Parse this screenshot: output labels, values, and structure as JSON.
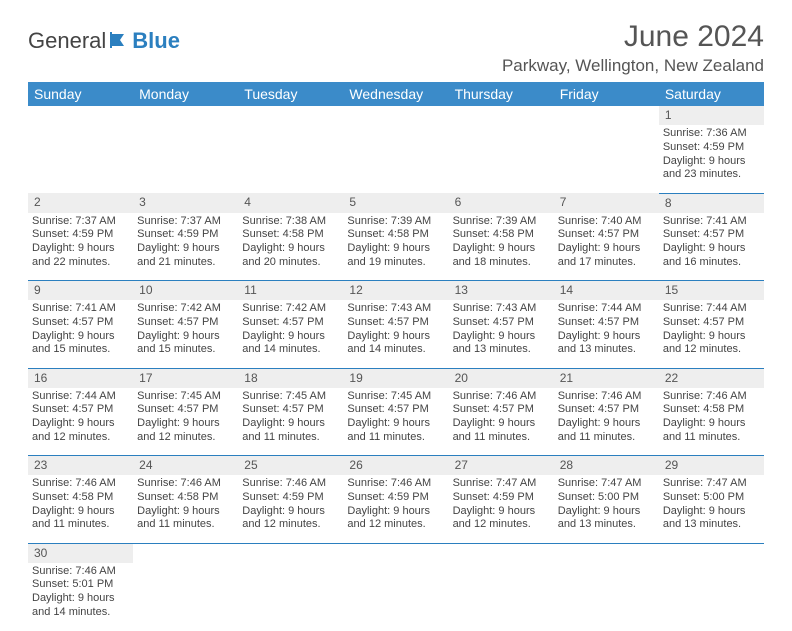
{
  "logo": {
    "general": "General",
    "blue": "Blue"
  },
  "header": {
    "month_title": "June 2024",
    "location": "Parkway, Wellington, New Zealand"
  },
  "colors": {
    "header_bg": "#3b8bc9",
    "header_text": "#ffffff",
    "daynum_bg": "#eeeeee",
    "border_color": "#2b7fbf",
    "text_color": "#444444",
    "logo_blue": "#2b7fbf"
  },
  "weekdays": [
    "Sunday",
    "Monday",
    "Tuesday",
    "Wednesday",
    "Thursday",
    "Friday",
    "Saturday"
  ],
  "weeks": [
    {
      "nums": [
        "",
        "",
        "",
        "",
        "",
        "",
        "1"
      ],
      "cells": [
        null,
        null,
        null,
        null,
        null,
        null,
        {
          "sunrise": "Sunrise: 7:36 AM",
          "sunset": "Sunset: 4:59 PM",
          "day1": "Daylight: 9 hours",
          "day2": "and 23 minutes."
        }
      ]
    },
    {
      "nums": [
        "2",
        "3",
        "4",
        "5",
        "6",
        "7",
        "8"
      ],
      "cells": [
        {
          "sunrise": "Sunrise: 7:37 AM",
          "sunset": "Sunset: 4:59 PM",
          "day1": "Daylight: 9 hours",
          "day2": "and 22 minutes."
        },
        {
          "sunrise": "Sunrise: 7:37 AM",
          "sunset": "Sunset: 4:59 PM",
          "day1": "Daylight: 9 hours",
          "day2": "and 21 minutes."
        },
        {
          "sunrise": "Sunrise: 7:38 AM",
          "sunset": "Sunset: 4:58 PM",
          "day1": "Daylight: 9 hours",
          "day2": "and 20 minutes."
        },
        {
          "sunrise": "Sunrise: 7:39 AM",
          "sunset": "Sunset: 4:58 PM",
          "day1": "Daylight: 9 hours",
          "day2": "and 19 minutes."
        },
        {
          "sunrise": "Sunrise: 7:39 AM",
          "sunset": "Sunset: 4:58 PM",
          "day1": "Daylight: 9 hours",
          "day2": "and 18 minutes."
        },
        {
          "sunrise": "Sunrise: 7:40 AM",
          "sunset": "Sunset: 4:57 PM",
          "day1": "Daylight: 9 hours",
          "day2": "and 17 minutes."
        },
        {
          "sunrise": "Sunrise: 7:41 AM",
          "sunset": "Sunset: 4:57 PM",
          "day1": "Daylight: 9 hours",
          "day2": "and 16 minutes."
        }
      ]
    },
    {
      "nums": [
        "9",
        "10",
        "11",
        "12",
        "13",
        "14",
        "15"
      ],
      "cells": [
        {
          "sunrise": "Sunrise: 7:41 AM",
          "sunset": "Sunset: 4:57 PM",
          "day1": "Daylight: 9 hours",
          "day2": "and 15 minutes."
        },
        {
          "sunrise": "Sunrise: 7:42 AM",
          "sunset": "Sunset: 4:57 PM",
          "day1": "Daylight: 9 hours",
          "day2": "and 15 minutes."
        },
        {
          "sunrise": "Sunrise: 7:42 AM",
          "sunset": "Sunset: 4:57 PM",
          "day1": "Daylight: 9 hours",
          "day2": "and 14 minutes."
        },
        {
          "sunrise": "Sunrise: 7:43 AM",
          "sunset": "Sunset: 4:57 PM",
          "day1": "Daylight: 9 hours",
          "day2": "and 14 minutes."
        },
        {
          "sunrise": "Sunrise: 7:43 AM",
          "sunset": "Sunset: 4:57 PM",
          "day1": "Daylight: 9 hours",
          "day2": "and 13 minutes."
        },
        {
          "sunrise": "Sunrise: 7:44 AM",
          "sunset": "Sunset: 4:57 PM",
          "day1": "Daylight: 9 hours",
          "day2": "and 13 minutes."
        },
        {
          "sunrise": "Sunrise: 7:44 AM",
          "sunset": "Sunset: 4:57 PM",
          "day1": "Daylight: 9 hours",
          "day2": "and 12 minutes."
        }
      ]
    },
    {
      "nums": [
        "16",
        "17",
        "18",
        "19",
        "20",
        "21",
        "22"
      ],
      "cells": [
        {
          "sunrise": "Sunrise: 7:44 AM",
          "sunset": "Sunset: 4:57 PM",
          "day1": "Daylight: 9 hours",
          "day2": "and 12 minutes."
        },
        {
          "sunrise": "Sunrise: 7:45 AM",
          "sunset": "Sunset: 4:57 PM",
          "day1": "Daylight: 9 hours",
          "day2": "and 12 minutes."
        },
        {
          "sunrise": "Sunrise: 7:45 AM",
          "sunset": "Sunset: 4:57 PM",
          "day1": "Daylight: 9 hours",
          "day2": "and 11 minutes."
        },
        {
          "sunrise": "Sunrise: 7:45 AM",
          "sunset": "Sunset: 4:57 PM",
          "day1": "Daylight: 9 hours",
          "day2": "and 11 minutes."
        },
        {
          "sunrise": "Sunrise: 7:46 AM",
          "sunset": "Sunset: 4:57 PM",
          "day1": "Daylight: 9 hours",
          "day2": "and 11 minutes."
        },
        {
          "sunrise": "Sunrise: 7:46 AM",
          "sunset": "Sunset: 4:57 PM",
          "day1": "Daylight: 9 hours",
          "day2": "and 11 minutes."
        },
        {
          "sunrise": "Sunrise: 7:46 AM",
          "sunset": "Sunset: 4:58 PM",
          "day1": "Daylight: 9 hours",
          "day2": "and 11 minutes."
        }
      ]
    },
    {
      "nums": [
        "23",
        "24",
        "25",
        "26",
        "27",
        "28",
        "29"
      ],
      "cells": [
        {
          "sunrise": "Sunrise: 7:46 AM",
          "sunset": "Sunset: 4:58 PM",
          "day1": "Daylight: 9 hours",
          "day2": "and 11 minutes."
        },
        {
          "sunrise": "Sunrise: 7:46 AM",
          "sunset": "Sunset: 4:58 PM",
          "day1": "Daylight: 9 hours",
          "day2": "and 11 minutes."
        },
        {
          "sunrise": "Sunrise: 7:46 AM",
          "sunset": "Sunset: 4:59 PM",
          "day1": "Daylight: 9 hours",
          "day2": "and 12 minutes."
        },
        {
          "sunrise": "Sunrise: 7:46 AM",
          "sunset": "Sunset: 4:59 PM",
          "day1": "Daylight: 9 hours",
          "day2": "and 12 minutes."
        },
        {
          "sunrise": "Sunrise: 7:47 AM",
          "sunset": "Sunset: 4:59 PM",
          "day1": "Daylight: 9 hours",
          "day2": "and 12 minutes."
        },
        {
          "sunrise": "Sunrise: 7:47 AM",
          "sunset": "Sunset: 5:00 PM",
          "day1": "Daylight: 9 hours",
          "day2": "and 13 minutes."
        },
        {
          "sunrise": "Sunrise: 7:47 AM",
          "sunset": "Sunset: 5:00 PM",
          "day1": "Daylight: 9 hours",
          "day2": "and 13 minutes."
        }
      ]
    },
    {
      "nums": [
        "30",
        "",
        "",
        "",
        "",
        "",
        ""
      ],
      "cells": [
        {
          "sunrise": "Sunrise: 7:46 AM",
          "sunset": "Sunset: 5:01 PM",
          "day1": "Daylight: 9 hours",
          "day2": "and 14 minutes."
        },
        null,
        null,
        null,
        null,
        null,
        null
      ]
    }
  ]
}
